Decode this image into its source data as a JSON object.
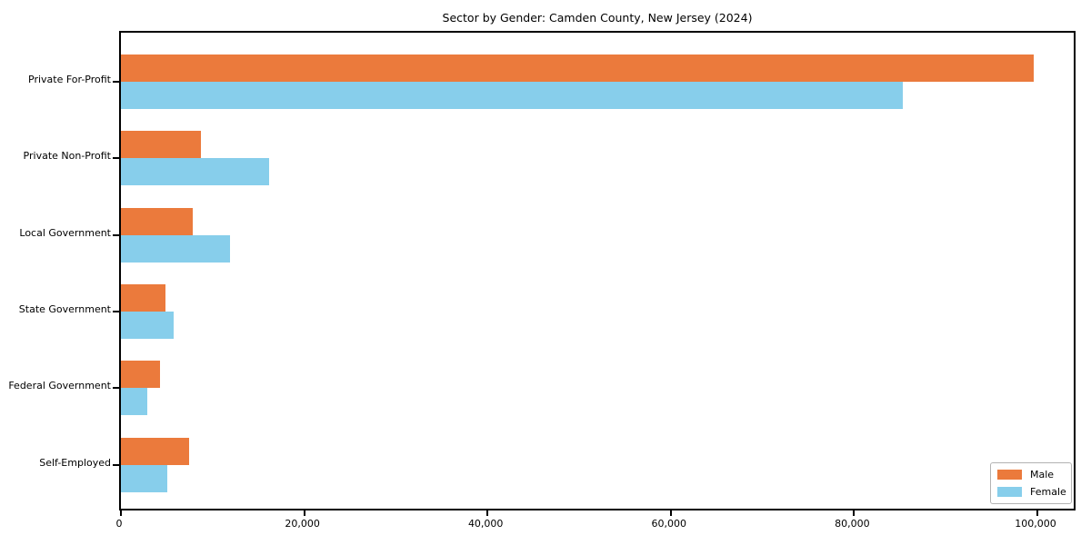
{
  "title": "Sector by Gender: Camden County, New Jersey (2024)",
  "colors": {
    "male": "#EB7A3C",
    "female": "#87CEEB",
    "spine": "#000000",
    "legend_border": "#B3B3B3",
    "background": "#FFFFFF"
  },
  "chart_data": {
    "type": "bar",
    "orientation": "horizontal",
    "title": "Sector by Gender: Camden County, New Jersey (2024)",
    "xlabel": "",
    "ylabel": "",
    "categories": [
      "Private For-Profit",
      "Private Non-Profit",
      "Local Government",
      "State Government",
      "Federal Government",
      "Self-Employed"
    ],
    "series": [
      {
        "name": "Male",
        "color": "#EB7A3C",
        "values": [
          99600,
          8700,
          7800,
          4900,
          4300,
          7400
        ]
      },
      {
        "name": "Female",
        "color": "#87CEEB",
        "values": [
          85300,
          16200,
          11900,
          5800,
          2900,
          5100
        ]
      }
    ],
    "xlim": [
      0,
      104000
    ],
    "x_ticks": [
      0,
      20000,
      40000,
      60000,
      80000,
      100000
    ],
    "x_tick_labels": [
      "0",
      "20,000",
      "40,000",
      "60,000",
      "80,000",
      "100,000"
    ],
    "grid": false,
    "legend": {
      "position": "lower right",
      "entries": [
        "Male",
        "Female"
      ]
    }
  }
}
